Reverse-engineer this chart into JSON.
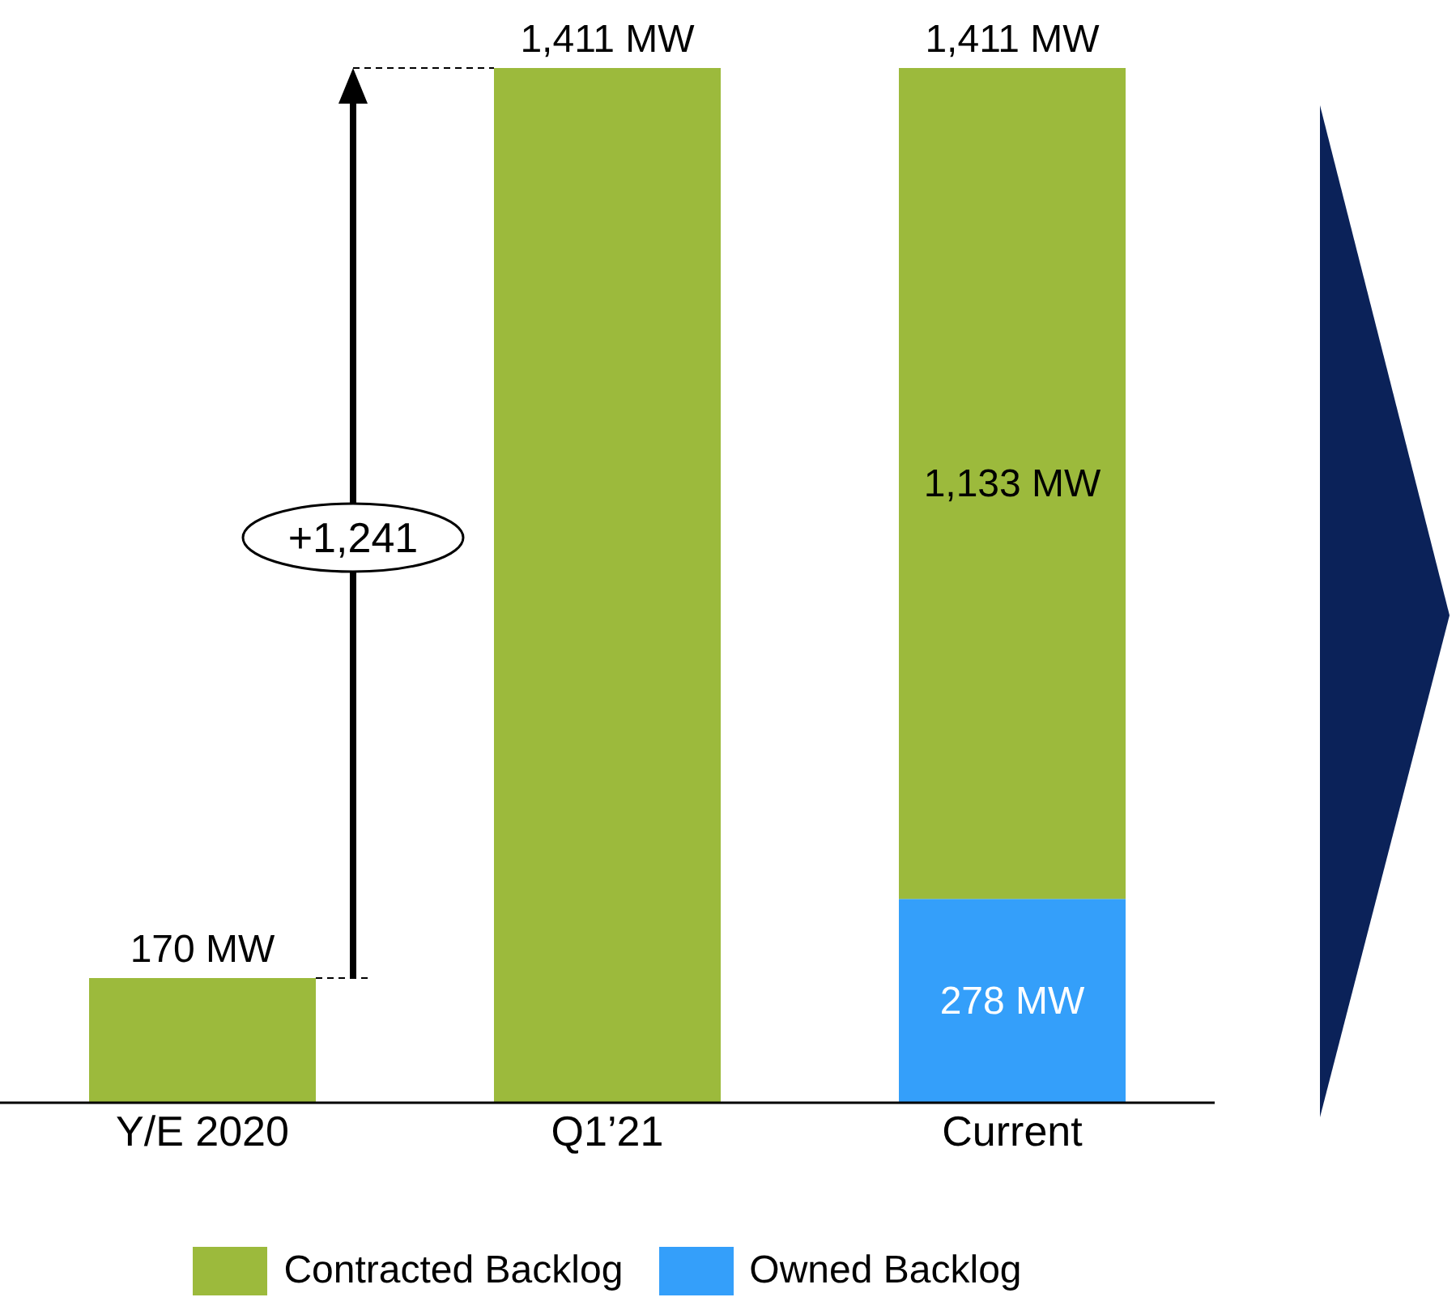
{
  "chart_data": {
    "type": "bar",
    "stacked": true,
    "categories": [
      "Y/E 2020",
      "Q1’21",
      "Current"
    ],
    "series": [
      {
        "name": "Owned Backlog",
        "color": "#349ffa",
        "values": [
          null,
          null,
          278
        ],
        "value_labels": [
          null,
          null,
          "278 MW"
        ]
      },
      {
        "name": "Contracted Backlog",
        "color": "#9cba3c",
        "values": [
          170,
          1411,
          1133
        ],
        "value_labels": [
          null,
          null,
          "1,133 MW"
        ]
      }
    ],
    "totals": [
      "170 MW",
      "1,411 MW",
      "1,411 MW"
    ],
    "ylim": [
      0,
      1411
    ],
    "tick_labels": "x",
    "legend": "bottom",
    "annotations": [
      "+1,241"
    ]
  }
}
